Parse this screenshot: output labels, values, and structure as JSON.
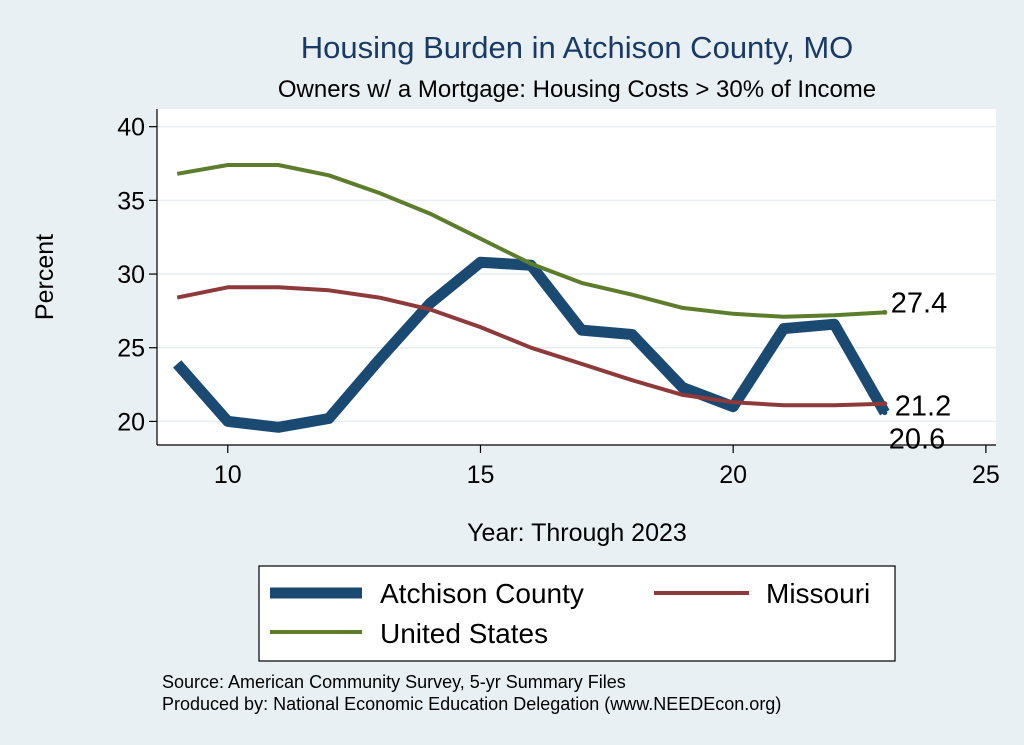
{
  "chart_data": {
    "type": "line",
    "title": "Housing Burden in Atchison County, MO",
    "subtitle": "Owners w/ a Mortgage: Housing Costs > 30% of Income",
    "xlabel": "Year: Through 2023",
    "ylabel": "Percent",
    "xlim": [
      8.6,
      25.2
    ],
    "ylim": [
      18.4,
      41.2
    ],
    "xticks": [
      10,
      15,
      20,
      25
    ],
    "yticks": [
      20,
      25,
      30,
      35,
      40
    ],
    "grid": true,
    "legend_position": "bottom",
    "series": [
      {
        "name": "Atchison County",
        "color": "#1a4a72",
        "x": [
          9,
          10,
          11,
          12,
          13,
          14,
          15,
          16,
          17,
          18,
          19,
          20,
          21,
          22,
          23
        ],
        "y": [
          23.9,
          20.0,
          19.6,
          20.2,
          24.2,
          28.0,
          30.8,
          30.6,
          26.2,
          25.9,
          22.3,
          21.0,
          26.3,
          26.6,
          20.6
        ],
        "end_label": "20.6"
      },
      {
        "name": "Missouri",
        "color": "#8e3a3a",
        "x": [
          9,
          10,
          11,
          12,
          13,
          14,
          15,
          16,
          17,
          18,
          19,
          20,
          21,
          22,
          23
        ],
        "y": [
          28.4,
          29.1,
          29.1,
          28.9,
          28.4,
          27.6,
          26.4,
          25.0,
          23.9,
          22.8,
          21.8,
          21.3,
          21.1,
          21.1,
          21.2
        ],
        "end_label": "21.2"
      },
      {
        "name": "United States",
        "color": "#5b7d2c",
        "x": [
          9,
          10,
          11,
          12,
          13,
          14,
          15,
          16,
          17,
          18,
          19,
          20,
          21,
          22,
          23
        ],
        "y": [
          36.8,
          37.4,
          37.4,
          36.7,
          35.5,
          34.1,
          32.4,
          30.7,
          29.4,
          28.6,
          27.7,
          27.3,
          27.1,
          27.2,
          27.4
        ],
        "end_label": "27.4"
      }
    ]
  },
  "notes": {
    "source": "Source: American Community Survey, 5-yr Summary Files",
    "produced": "Produced by: National Economic Education Delegation (www.NEEDEcon.org)"
  }
}
